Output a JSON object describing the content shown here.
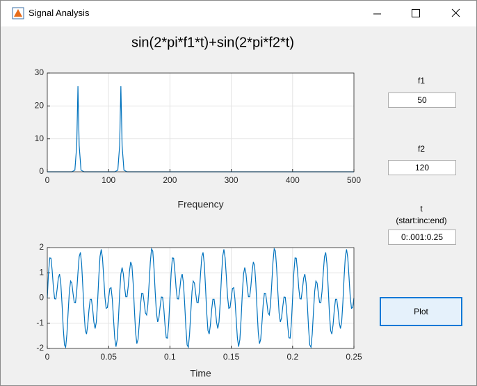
{
  "window": {
    "title": "Signal Analysis"
  },
  "heading": "sin(2*pi*f1*t)+sin(2*pi*f2*t)",
  "chart_data": [
    {
      "type": "line",
      "xlabel": "Frequency",
      "color": "#0072bd",
      "grid": true,
      "x": [
        0,
        40,
        45,
        48,
        50,
        52,
        55,
        60,
        110,
        115,
        118,
        120,
        122,
        125,
        130,
        500
      ],
      "values": [
        0,
        0,
        0.5,
        8,
        26,
        8,
        0.5,
        0,
        0,
        0.5,
        8,
        26,
        8,
        0.5,
        0,
        0
      ],
      "xlim": [
        0,
        500
      ],
      "xticks": [
        0,
        100,
        200,
        300,
        400,
        500
      ],
      "ylim": [
        0,
        30
      ],
      "yticks": [
        0,
        10,
        20,
        30
      ]
    },
    {
      "type": "line",
      "xlabel": "Time",
      "color": "#0072bd",
      "grid": true,
      "x": [
        0,
        0.001,
        0.002,
        0.003,
        0.004,
        0.005,
        0.006,
        0.007,
        0.008,
        0.009,
        0.01,
        0.011,
        0.012,
        0.013,
        0.014,
        0.015,
        0.016,
        0.017,
        0.018,
        0.019,
        0.02,
        0.021,
        0.022,
        0.023,
        0.024,
        0.025,
        0.026,
        0.027,
        0.028,
        0.029,
        0.03,
        0.031,
        0.032,
        0.033,
        0.034,
        0.035,
        0.036,
        0.037,
        0.038,
        0.039,
        0.04,
        0.041,
        0.042,
        0.043,
        0.044,
        0.045,
        0.046,
        0.047,
        0.048,
        0.049,
        0.05,
        0.051,
        0.052,
        0.053,
        0.054,
        0.055,
        0.056,
        0.057,
        0.058,
        0.059,
        0.06,
        0.061,
        0.062,
        0.063,
        0.064,
        0.065,
        0.066,
        0.067,
        0.068,
        0.069,
        0.07,
        0.071,
        0.072,
        0.073,
        0.074,
        0.075,
        0.076,
        0.077,
        0.078,
        0.079,
        0.08,
        0.081,
        0.082,
        0.083,
        0.084,
        0.085,
        0.086,
        0.087,
        0.088,
        0.089,
        0.09,
        0.091,
        0.092,
        0.093,
        0.094,
        0.095,
        0.096,
        0.097,
        0.098,
        0.099,
        0.1,
        0.101,
        0.102,
        0.103,
        0.104,
        0.105,
        0.106,
        0.107,
        0.108,
        0.109,
        0.11,
        0.111,
        0.112,
        0.113,
        0.114,
        0.115,
        0.116,
        0.117,
        0.118,
        0.119,
        0.12,
        0.121,
        0.122,
        0.123,
        0.124,
        0.125,
        0.126,
        0.127,
        0.128,
        0.129,
        0.13,
        0.131,
        0.132,
        0.133,
        0.134,
        0.135,
        0.136,
        0.137,
        0.138,
        0.139,
        0.14,
        0.141,
        0.142,
        0.143,
        0.144,
        0.145,
        0.146,
        0.147,
        0.148,
        0.149,
        0.15,
        0.151,
        0.152,
        0.153,
        0.154,
        0.155,
        0.156,
        0.157,
        0.158,
        0.159,
        0.16,
        0.161,
        0.162,
        0.163,
        0.164,
        0.165,
        0.166,
        0.167,
        0.168,
        0.169,
        0.17,
        0.171,
        0.172,
        0.173,
        0.174,
        0.175,
        0.176,
        0.177,
        0.178,
        0.179,
        0.18,
        0.181,
        0.182,
        0.183,
        0.184,
        0.185,
        0.186,
        0.187,
        0.188,
        0.189,
        0.19,
        0.191,
        0.192,
        0.193,
        0.194,
        0.195,
        0.196,
        0.197,
        0.198,
        0.199,
        0.2,
        0.201,
        0.202,
        0.203,
        0.204,
        0.205,
        0.206,
        0.207,
        0.208,
        0.209,
        0.21,
        0.211,
        0.212,
        0.213,
        0.214,
        0.215,
        0.216,
        0.217,
        0.218,
        0.219,
        0.22,
        0.221,
        0.222,
        0.223,
        0.224,
        0.225,
        0.226,
        0.227,
        0.228,
        0.229,
        0.23,
        0.231,
        0.232,
        0.233,
        0.234,
        0.235,
        0.236,
        0.237,
        0.238,
        0.239,
        0.24,
        0.241,
        0.242,
        0.243,
        0.244,
        0.245,
        0.246,
        0.247,
        0.248,
        0.249,
        0.25
      ],
      "values": [
        0,
        0.99,
        1.59,
        1.58,
        1.08,
        0.41,
        -0.03,
        -0.04,
        0.34,
        0.79,
        0.95,
        0.6,
        -0.22,
        -1.18,
        -1.86,
        -1.95,
        -1.43,
        -0.56,
        0.26,
        0.67,
        0.59,
        0.18,
        -0.18,
        -0.19,
        0.27,
        1,
        1.64,
        1.81,
        1.36,
        0.43,
        -0.59,
        -1.29,
        -1.43,
        -1.06,
        -0.47,
        -0.05,
        -0.05,
        -0.44,
        -0.96,
        -1.21,
        -0.95,
        -0.17,
        0.84,
        1.65,
        1.93,
        1.59,
        0.83,
        0.04,
        -0.41,
        -0.38,
        0,
        0.38,
        0.41,
        -0.04,
        -0.83,
        -1.59,
        -1.93,
        -1.65,
        -0.84,
        0.17,
        0.95,
        1.21,
        0.96,
        0.44,
        0.05,
        0.05,
        0.47,
        1.06,
        1.43,
        1.29,
        0.59,
        -0.43,
        -1.36,
        -1.81,
        -1.64,
        -1,
        -0.27,
        0.19,
        0.18,
        -0.18,
        -0.59,
        -0.67,
        -0.26,
        0.56,
        1.43,
        1.95,
        1.86,
        1.18,
        0.22,
        -0.6,
        -0.95,
        -0.79,
        -0.34,
        0.04,
        0.03,
        -0.41,
        -1.08,
        -1.58,
        -1.59,
        -0.99,
        0,
        0.99,
        1.59,
        1.58,
        1.08,
        0.41,
        -0.03,
        -0.04,
        0.34,
        0.79,
        0.95,
        0.6,
        -0.22,
        -1.18,
        -1.86,
        -1.95,
        -1.43,
        -0.56,
        0.26,
        0.67,
        0.59,
        0.18,
        -0.18,
        -0.19,
        0.27,
        1,
        1.64,
        1.81,
        1.36,
        0.43,
        -0.59,
        -1.29,
        -1.43,
        -1.06,
        -0.47,
        -0.05,
        -0.05,
        -0.44,
        -0.96,
        -1.21,
        -0.95,
        -0.17,
        0.84,
        1.65,
        1.93,
        1.59,
        0.83,
        0.04,
        -0.41,
        -0.38,
        0,
        0.38,
        0.41,
        -0.04,
        -0.83,
        -1.59,
        -1.93,
        -1.65,
        -0.84,
        0.17,
        0.95,
        1.21,
        0.96,
        0.44,
        0.05,
        0.05,
        0.47,
        1.06,
        1.43,
        1.29,
        0.59,
        -0.43,
        -1.36,
        -1.81,
        -1.64,
        -1,
        -0.27,
        0.19,
        0.18,
        -0.18,
        -0.59,
        -0.67,
        -0.26,
        0.56,
        1.43,
        1.95,
        1.86,
        1.18,
        0.22,
        -0.6,
        -0.95,
        -0.79,
        -0.34,
        0.04,
        0.03,
        -0.41,
        -1.08,
        -1.58,
        -1.59,
        -0.99,
        0,
        0.99,
        1.59,
        1.58,
        1.08,
        0.41,
        -0.03,
        -0.04,
        0.34,
        0.79,
        0.95,
        0.6,
        -0.22,
        -1.18,
        -1.86,
        -1.95,
        -1.43,
        -0.56,
        0.26,
        0.67,
        0.59,
        0.18,
        -0.18,
        -0.19,
        0.27,
        1,
        1.64,
        1.81,
        1.36,
        0.43,
        -0.59,
        -1.29,
        -1.43,
        -1.06,
        -0.47,
        -0.05,
        -0.05,
        -0.44,
        -0.96,
        -1.21,
        -0.95,
        -0.17,
        0.84,
        1.65,
        1.93,
        1.59,
        0.83,
        0.04,
        -0.41,
        -0.38,
        0
      ],
      "xlim": [
        0,
        0.25
      ],
      "xticks": [
        0,
        0.05,
        0.1,
        0.15,
        0.2,
        0.25
      ],
      "ylim": [
        -2,
        2
      ],
      "yticks": [
        -2,
        -1,
        0,
        1,
        2
      ]
    }
  ],
  "controls": {
    "f1": {
      "label": "f1",
      "value": "50"
    },
    "f2": {
      "label": "f2",
      "value": "120"
    },
    "t": {
      "label": "t",
      "hint": "(start:inc:end)",
      "value": "0:.001:0.25"
    },
    "button": "Plot"
  }
}
